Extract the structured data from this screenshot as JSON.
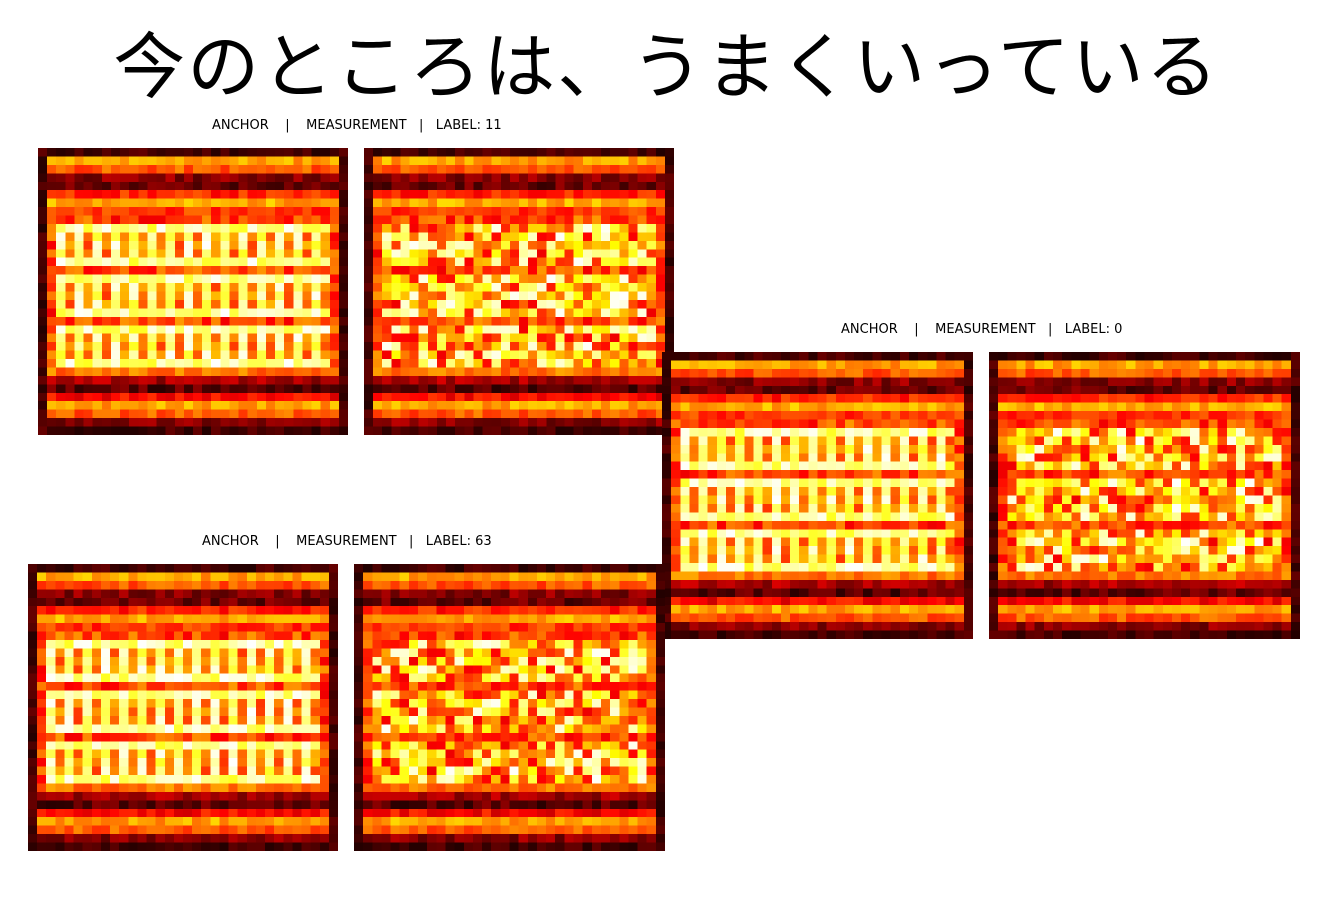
{
  "title": "今のところは、うまくいっている",
  "panels": [
    {
      "caption": "ANCHOR    |    MEASUREMENT   |   LABEL: 11"
    },
    {
      "caption": "ANCHOR    |    MEASUREMENT   |   LABEL: 0"
    },
    {
      "caption": "ANCHOR    |    MEASUREMENT   |   LABEL: 63"
    }
  ],
  "colormap": "hot"
}
